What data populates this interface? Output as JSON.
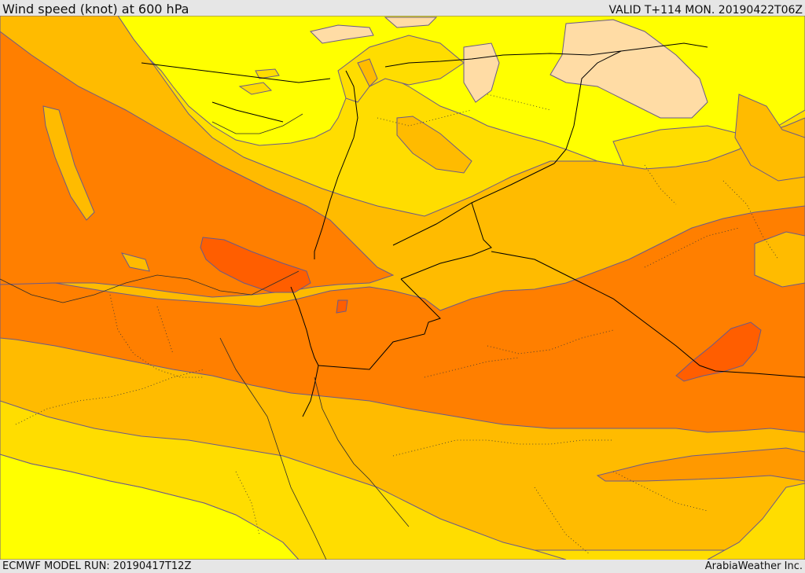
{
  "header": {
    "title": "Wind speed (knot) at 600 hPa",
    "valid": "VALID T+114 MON. 20190422T06Z"
  },
  "footer": {
    "model_run": "ECMWF MODEL RUN: 20190417T12Z",
    "credit": "ArabiaWeather Inc."
  },
  "colors": {
    "band_pale": "#ffdca5",
    "band_yellow": "#ffff00",
    "band_gold": "#ffdd00",
    "band_amber": "#ffbb00",
    "band_orange": "#ff9900",
    "band_dark_orange": "#ff7f00",
    "band_red_orange": "#ff5e00",
    "contour_line": "#6a5a8a",
    "border_line": "#000000"
  }
}
